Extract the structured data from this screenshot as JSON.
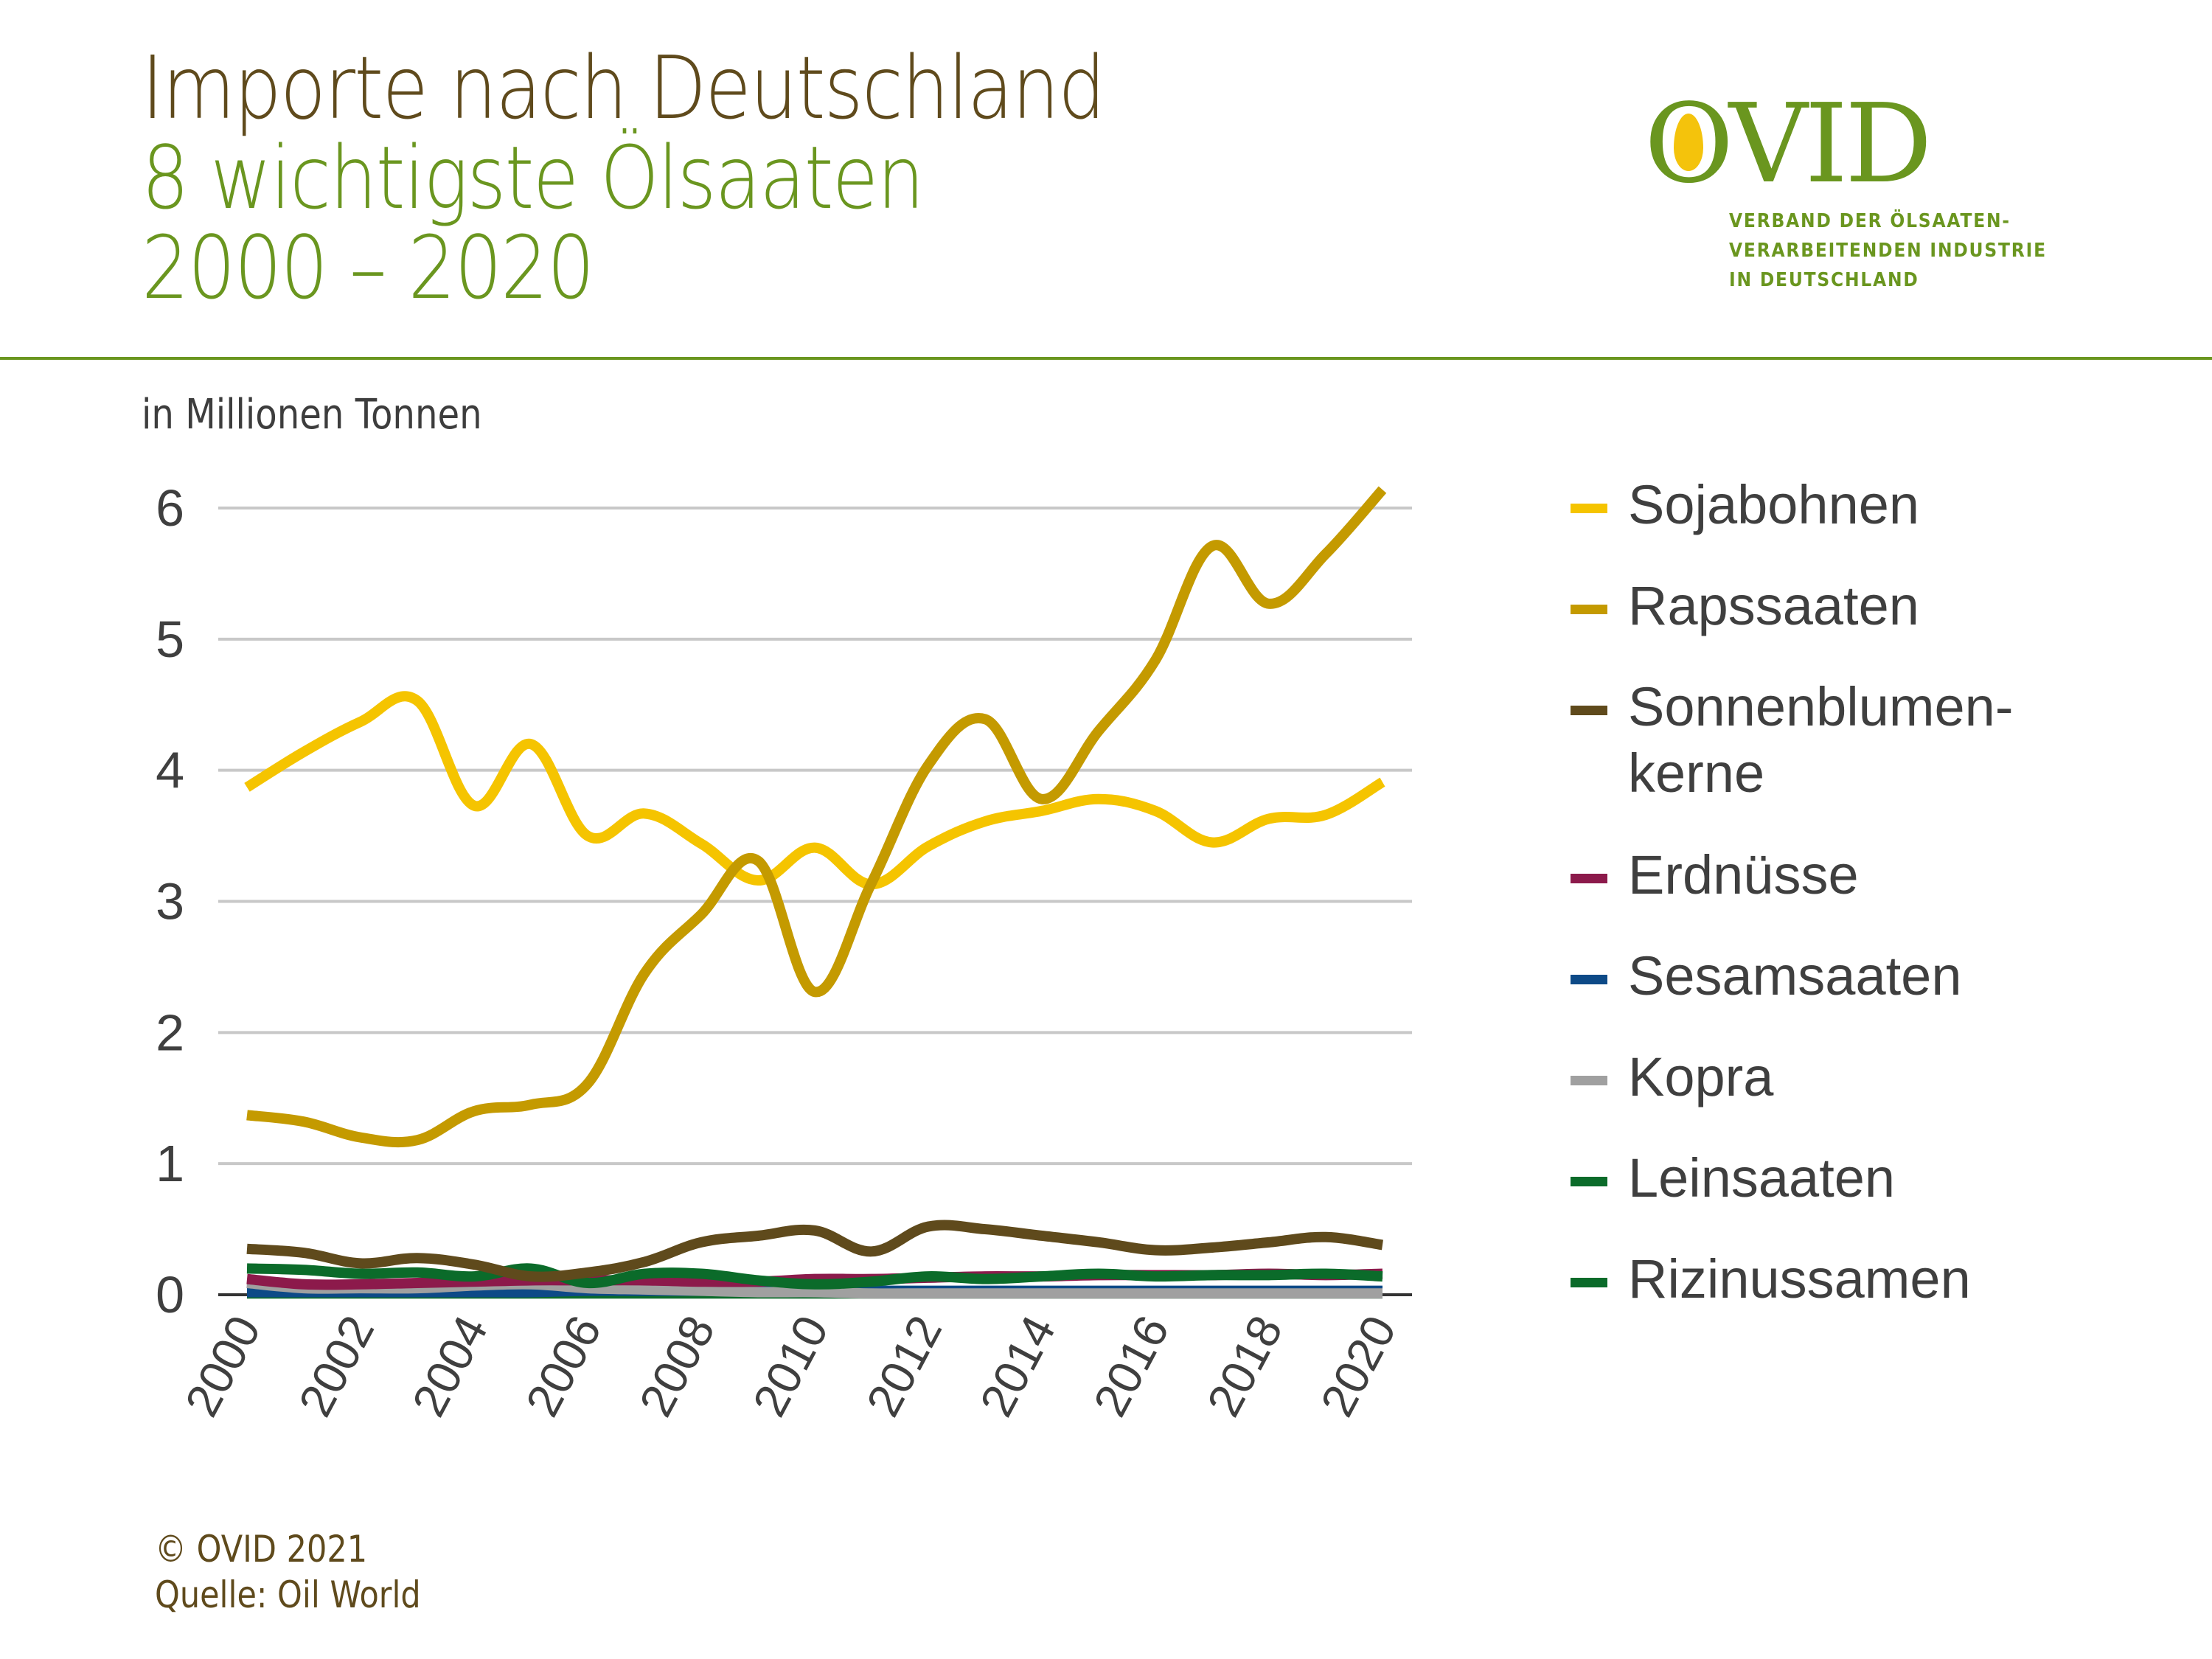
{
  "header": {
    "title_line1": "Importe nach Deutschland",
    "title_line2": "8 wichtigste Ölsaaten",
    "title_line3": "2000 – 2020"
  },
  "logo": {
    "wordmark": "OVID",
    "subtitle_lines": [
      "VERBAND DER ÖLSAATEN-",
      "VERARBEITENDEN INDUSTRIE",
      "IN DEUTSCHLAND"
    ],
    "colors": {
      "green": "#6a961f",
      "yellow": "#f4c30c"
    }
  },
  "footer": {
    "copyright": "© OVID 2021",
    "source": "Quelle: Oil World"
  },
  "chart_data": {
    "type": "line",
    "title": "Importe nach Deutschland – 8 wichtigste Ölsaaten 2000 – 2020",
    "ylabel": "in Millionen Tonnen",
    "xlabel": "",
    "x": [
      2000,
      2001,
      2002,
      2003,
      2004,
      2005,
      2006,
      2007,
      2008,
      2009,
      2010,
      2011,
      2012,
      2013,
      2014,
      2015,
      2016,
      2017,
      2018,
      2019,
      2020
    ],
    "xticks": [
      "2000",
      "2002",
      "2004",
      "2006",
      "2008",
      "2010",
      "2012",
      "2014",
      "2016",
      "2018",
      "2020"
    ],
    "yticks": [
      "0",
      "1",
      "2",
      "3",
      "4",
      "5",
      "6"
    ],
    "ylim": [
      0,
      6.2
    ],
    "grid": true,
    "legend_position": "right",
    "series": [
      {
        "name": "Sojabohnen",
        "color": "#f5c400",
        "values": [
          3.87,
          4.14,
          4.37,
          4.53,
          3.73,
          4.2,
          3.5,
          3.67,
          3.44,
          3.16,
          3.41,
          3.13,
          3.42,
          3.61,
          3.69,
          3.78,
          3.69,
          3.45,
          3.63,
          3.66,
          3.91
        ]
      },
      {
        "name": "Rapssaaten",
        "color": "#c49a00",
        "values": [
          1.37,
          1.32,
          1.2,
          1.18,
          1.4,
          1.45,
          1.61,
          2.45,
          2.9,
          3.31,
          2.31,
          3.14,
          4.04,
          4.39,
          3.78,
          4.3,
          4.84,
          5.71,
          5.27,
          5.65,
          6.14
        ]
      },
      {
        "name": "Sonnenblumenkerne",
        "label_lines": [
          "Sonnenblumen-",
          "kerne"
        ],
        "color": "#5f4a1c",
        "values": [
          0.35,
          0.32,
          0.24,
          0.28,
          0.23,
          0.14,
          0.17,
          0.25,
          0.4,
          0.45,
          0.49,
          0.33,
          0.52,
          0.5,
          0.45,
          0.4,
          0.34,
          0.36,
          0.4,
          0.44,
          0.38
        ]
      },
      {
        "name": "Erdnüsse",
        "color": "#8c1a4b",
        "values": [
          0.12,
          0.08,
          0.08,
          0.09,
          0.1,
          0.11,
          0.11,
          0.11,
          0.1,
          0.1,
          0.12,
          0.12,
          0.13,
          0.14,
          0.14,
          0.15,
          0.15,
          0.15,
          0.16,
          0.15,
          0.16
        ]
      },
      {
        "name": "Sesamsaaten",
        "color": "#0d4a87",
        "values": [
          0.02,
          0.02,
          0.02,
          0.02,
          0.02,
          0.02,
          0.03,
          0.03,
          0.03,
          0.03,
          0.03,
          0.03,
          0.03,
          0.03,
          0.03,
          0.03,
          0.03,
          0.03,
          0.03,
          0.03,
          0.03
        ]
      },
      {
        "name": "Kopra",
        "color": "#a0a0a0",
        "values": [
          0.09,
          0.05,
          0.05,
          0.05,
          0.07,
          0.08,
          0.05,
          0.04,
          0.03,
          0.02,
          0.02,
          0.01,
          0.01,
          0.01,
          0.01,
          0.01,
          0.01,
          0.01,
          0.01,
          0.01,
          0.01
        ]
      },
      {
        "name": "Leinsaaten",
        "color": "#0b6b2a",
        "values": [
          0.2,
          0.19,
          0.16,
          0.17,
          0.14,
          0.2,
          0.09,
          0.16,
          0.16,
          0.11,
          0.08,
          0.1,
          0.14,
          0.12,
          0.14,
          0.16,
          0.14,
          0.15,
          0.15,
          0.16,
          0.14
        ]
      },
      {
        "name": "Rizinussamen",
        "color": "#0b6b2a",
        "values": [
          0.01,
          0.01,
          0.01,
          0.01,
          0.01,
          0.01,
          0.01,
          0.01,
          0.01,
          0.01,
          0.01,
          0.01,
          0.01,
          0.01,
          0.01,
          0.01,
          0.01,
          0.01,
          0.01,
          0.01,
          0.01
        ]
      }
    ]
  }
}
